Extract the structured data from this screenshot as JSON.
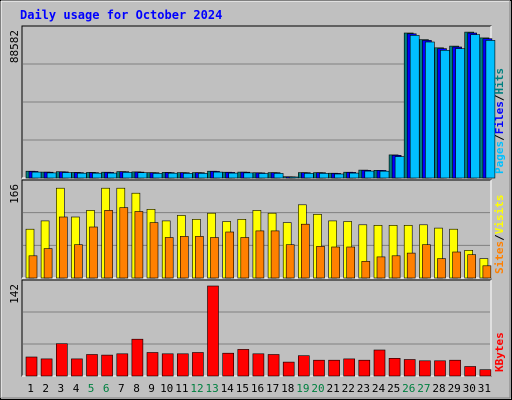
{
  "title": "Daily usage for October 2024",
  "colors": {
    "background": "#c0c0c0",
    "plot_bg": "#c0c0c0",
    "title": "#0000ff",
    "pages": "#00c0ff",
    "files": "#0000ff",
    "hits": "#008080",
    "visits": "#ffff00",
    "sites": "#ff8000",
    "kbytes": "#ff0000",
    "weekend": "#008040"
  },
  "chart_data": [
    {
      "type": "bar",
      "name": "hits-files-pages",
      "ymax_label": "88582",
      "ylim": [
        0,
        88582
      ],
      "legend": [
        {
          "label": "Pages",
          "color": "#00c0ff"
        },
        {
          "label": "/",
          "color": "#000000"
        },
        {
          "label": "Files",
          "color": "#0000ff"
        },
        {
          "label": "/",
          "color": "#000000"
        },
        {
          "label": "Hits",
          "color": "#008080"
        }
      ],
      "series": [
        {
          "name": "Hits",
          "color": "#008080",
          "values": [
            4100,
            3600,
            3800,
            3400,
            3400,
            3500,
            3900,
            3700,
            3300,
            3400,
            3300,
            3300,
            4100,
            3500,
            3600,
            3200,
            3300,
            800,
            3300,
            3300,
            2900,
            3500,
            4800,
            4700,
            14000,
            88000,
            84000,
            79000,
            80000,
            88500,
            85000
          ]
        },
        {
          "name": "Files",
          "color": "#0000ff",
          "values": [
            4000,
            3500,
            3700,
            3300,
            3300,
            3400,
            3800,
            3600,
            3200,
            3300,
            3200,
            3200,
            4000,
            3400,
            3500,
            3100,
            3200,
            750,
            3200,
            3200,
            2800,
            3400,
            4700,
            4600,
            13800,
            87500,
            83500,
            78500,
            79500,
            88000,
            84500
          ]
        },
        {
          "name": "Pages",
          "color": "#00c0ff",
          "values": [
            3600,
            3100,
            3300,
            2900,
            2900,
            3000,
            3400,
            3200,
            2800,
            2900,
            2800,
            2800,
            3600,
            3000,
            3100,
            2700,
            2800,
            600,
            2800,
            2800,
            2400,
            3000,
            4200,
            4100,
            13000,
            86500,
            82500,
            77500,
            78500,
            87000,
            83500
          ]
        }
      ]
    },
    {
      "type": "bar",
      "name": "visits-sites",
      "ymax_label": "166",
      "ylim": [
        0,
        166
      ],
      "legend": [
        {
          "label": "Sites",
          "color": "#ff8000"
        },
        {
          "label": "/",
          "color": "#000000"
        },
        {
          "label": "Visits",
          "color": "#ffff00"
        }
      ],
      "series": [
        {
          "name": "Visits",
          "color": "#ffff00",
          "values": [
            88,
            103,
            162,
            110,
            122,
            162,
            162,
            153,
            124,
            103,
            113,
            106,
            117,
            102,
            106,
            122,
            117,
            100,
            132,
            115,
            103,
            102,
            96,
            95,
            95,
            95,
            96,
            90,
            88,
            50,
            35
          ]
        },
        {
          "name": "Sites",
          "color": "#ff8000",
          "values": [
            40,
            53,
            110,
            60,
            92,
            122,
            127,
            120,
            100,
            73,
            75,
            75,
            73,
            83,
            73,
            85,
            85,
            60,
            97,
            57,
            56,
            56,
            30,
            38,
            40,
            45,
            60,
            35,
            47,
            42,
            22
          ]
        }
      ]
    },
    {
      "type": "bar",
      "name": "kbytes",
      "ymax_label": "142",
      "ylim": [
        0,
        142
      ],
      "legend": [
        {
          "label": "KBytes",
          "color": "#ff0000"
        }
      ],
      "series": [
        {
          "name": "KBytes",
          "color": "#ff0000",
          "values": [
            30,
            27,
            51,
            27,
            34,
            33,
            35,
            58,
            37,
            35,
            35,
            37,
            142,
            36,
            42,
            35,
            34,
            22,
            32,
            25,
            25,
            27,
            25,
            41,
            28,
            26,
            24,
            24,
            25,
            15,
            10
          ]
        }
      ]
    }
  ],
  "x_labels": [
    "1",
    "2",
    "3",
    "4",
    "5",
    "6",
    "7",
    "8",
    "9",
    "10",
    "11",
    "12",
    "13",
    "14",
    "15",
    "16",
    "17",
    "18",
    "19",
    "20",
    "21",
    "22",
    "23",
    "24",
    "25",
    "26",
    "27",
    "28",
    "29",
    "30",
    "31"
  ],
  "weekend_days": [
    5,
    6,
    12,
    13,
    19,
    20,
    26,
    27
  ]
}
